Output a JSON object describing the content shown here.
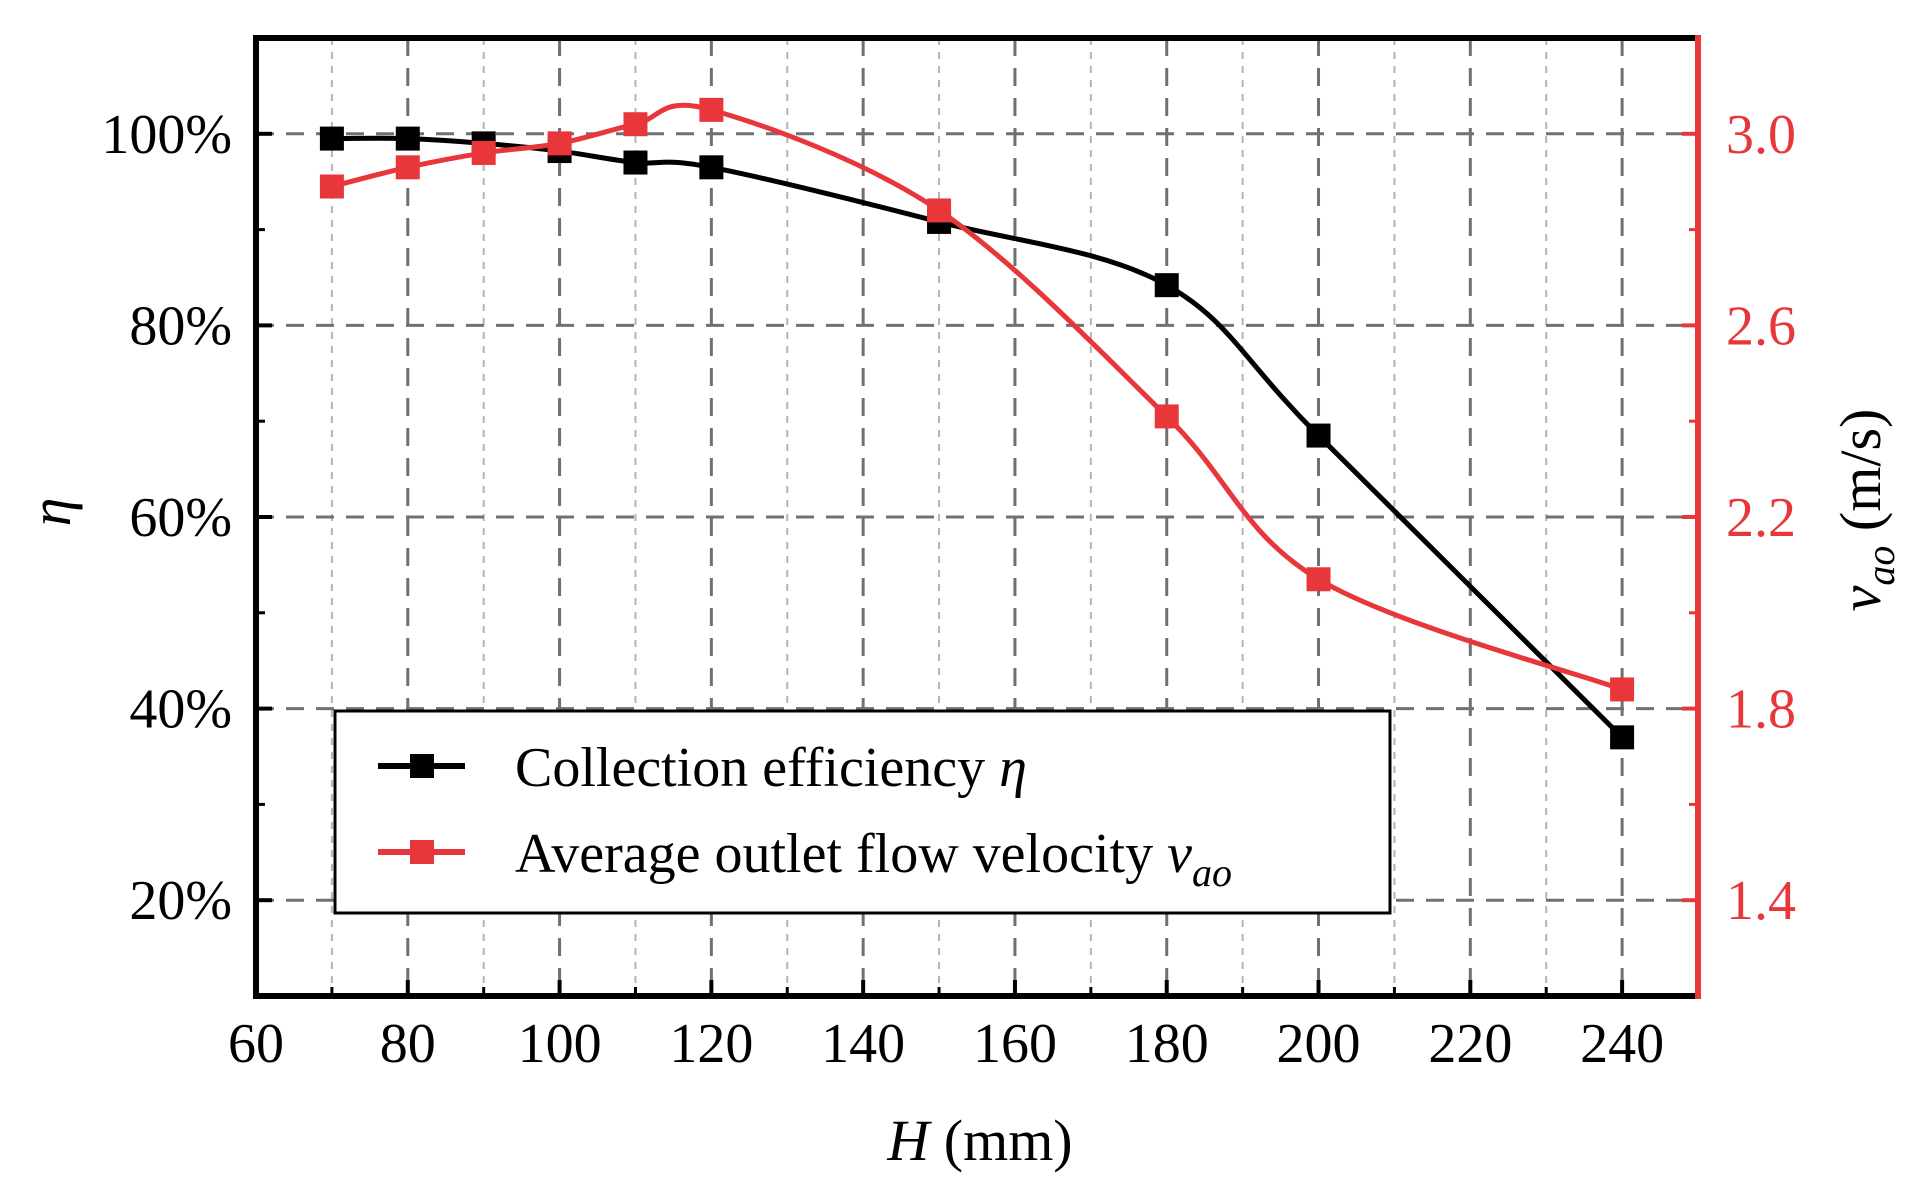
{
  "chart_data": {
    "type": "line",
    "xlabel": {
      "var": "H",
      "unit": " (mm)"
    },
    "ylabel_left": {
      "var": "η"
    },
    "ylabel_right": {
      "var": "v",
      "sub": "ao",
      "unit": " (m/s)"
    },
    "x_ticks": [
      "60",
      "80",
      "100",
      "120",
      "140",
      "160",
      "180",
      "200",
      "220",
      "240"
    ],
    "xlim": [
      60,
      250
    ],
    "x_major": [
      60,
      80,
      100,
      120,
      140,
      160,
      180,
      200,
      220,
      240
    ],
    "x_minor": [
      70,
      90,
      110,
      130,
      150,
      170,
      190,
      210,
      230
    ],
    "ylim_left": [
      0.1,
      1.1
    ],
    "y_left_major": [
      0.2,
      0.4,
      0.6,
      0.8,
      1.0
    ],
    "y_left_minor": [
      0.1,
      0.3,
      0.5,
      0.7,
      0.9
    ],
    "y_left_ticks": [
      "20%",
      "40%",
      "60%",
      "80%",
      "100%"
    ],
    "ylim_right": [
      1.2,
      3.2
    ],
    "y_right_major": [
      1.4,
      1.8,
      2.2,
      2.6,
      3.0
    ],
    "y_right_minor": [
      1.2,
      1.6,
      2.0,
      2.4,
      2.8
    ],
    "y_right_ticks": [
      "1.4",
      "1.8",
      "2.2",
      "2.6",
      "3.0"
    ],
    "grid": true,
    "series": [
      {
        "name": "Collection efficiency",
        "legend_var": "η",
        "axis": "left",
        "color": "#000000",
        "x": [
          70,
          80,
          90,
          100,
          110,
          120,
          150,
          180,
          200,
          240
        ],
        "y": [
          0.995,
          0.995,
          0.99,
          0.982,
          0.97,
          0.965,
          0.908,
          0.842,
          0.685,
          0.37
        ]
      },
      {
        "name": "Average outlet flow velocity",
        "legend_var": "v",
        "legend_sub": "ao",
        "axis": "right",
        "color": "#e8373a",
        "x": [
          70,
          80,
          90,
          100,
          110,
          120,
          150,
          180,
          200,
          240
        ],
        "y": [
          2.89,
          2.93,
          2.96,
          2.98,
          3.02,
          3.05,
          2.84,
          2.41,
          2.07,
          1.84
        ]
      }
    ]
  }
}
